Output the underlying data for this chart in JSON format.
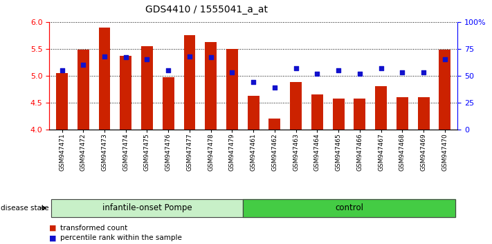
{
  "title": "GDS4410 / 1555041_a_at",
  "samples": [
    "GSM947471",
    "GSM947472",
    "GSM947473",
    "GSM947474",
    "GSM947475",
    "GSM947476",
    "GSM947477",
    "GSM947478",
    "GSM947479",
    "GSM947461",
    "GSM947462",
    "GSM947463",
    "GSM947464",
    "GSM947465",
    "GSM947466",
    "GSM947467",
    "GSM947468",
    "GSM947469",
    "GSM947470"
  ],
  "transformed_count": [
    5.05,
    5.48,
    5.9,
    5.37,
    5.55,
    4.97,
    5.75,
    5.63,
    5.5,
    4.62,
    4.2,
    4.88,
    4.65,
    4.57,
    4.57,
    4.8,
    4.6,
    4.6,
    5.48
  ],
  "percentile_rank": [
    55,
    60,
    68,
    67,
    65,
    55,
    68,
    67,
    53,
    44,
    39,
    57,
    52,
    55,
    52,
    57,
    53,
    53,
    65
  ],
  "group_labels": [
    "infantile-onset Pompe",
    "control"
  ],
  "group_sizes": [
    9,
    10
  ],
  "bar_color": "#cc2200",
  "dot_color": "#1111cc",
  "ylim_left": [
    4.0,
    6.0
  ],
  "ylim_right": [
    0,
    100
  ],
  "yticks_left": [
    4.0,
    4.5,
    5.0,
    5.5,
    6.0
  ],
  "yticks_right": [
    0,
    25,
    50,
    75,
    100
  ],
  "yticklabels_right": [
    "0",
    "25",
    "50",
    "75",
    "100%"
  ],
  "bar_bottom": 4.0,
  "legend_items": [
    "transformed count",
    "percentile rank within the sample"
  ],
  "disease_state_label": "disease state"
}
